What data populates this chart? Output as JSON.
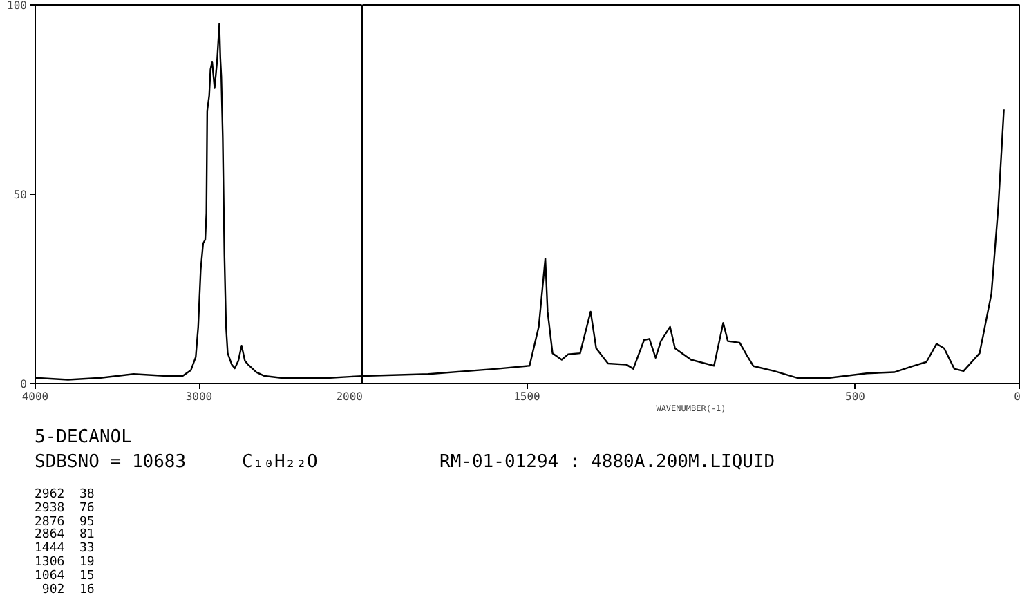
{
  "chart_data": [
    {
      "type": "line",
      "title": "5-DECANOL",
      "annotations": [
        "SDBSNO = 10683",
        "C₁₀H₂₂O",
        "RM-01-01294 : 4880A.200M.LIQUID",
        "2962  38",
        "2938  76",
        "2876  95",
        "2864  81",
        "1444  33",
        "1306  19",
        "1064  15",
        " 902  16"
      ],
      "xlim": [
        4000,
        2000
      ],
      "ylim": [
        0,
        100
      ],
      "xticks": [
        4000,
        3000,
        2000
      ],
      "yticks": [
        0,
        50,
        100
      ],
      "grid": false,
      "line_style": "solid",
      "series": [
        {
          "color": "#000000",
          "x": [
            4000,
            3800,
            3600,
            3400,
            3200,
            3100,
            3050,
            3020,
            3005,
            2990,
            2975,
            2962,
            2955,
            2950,
            2938,
            2930,
            2920,
            2905,
            2890,
            2876,
            2870,
            2864,
            2855,
            2845,
            2835,
            2825,
            2800,
            2782,
            2760,
            2740,
            2720,
            2700,
            2650,
            2600,
            2500,
            2400,
            2200,
            2000
          ],
          "values": [
            1.5,
            1,
            1.5,
            2.5,
            2,
            2,
            3.5,
            7,
            15,
            30,
            37,
            38,
            45,
            72,
            76,
            83,
            85,
            78,
            85,
            95,
            86,
            81,
            65,
            34,
            15,
            8,
            5,
            4,
            6,
            10,
            6,
            5,
            3,
            2,
            1.5,
            1.5,
            1.5,
            2
          ]
        }
      ]
    },
    {
      "type": "line",
      "xlabel": "WAVENUMBER(-1)",
      "xlim": [
        2000,
        0
      ],
      "ylim": [
        0,
        100
      ],
      "xticks": [
        1500,
        500,
        0
      ],
      "yticks": [
        0,
        50,
        100
      ],
      "tick_labels": "x",
      "grid": false,
      "line_style": "solid",
      "series": [
        {
          "color": "#000000",
          "x": [
            2000,
            1800,
            1591,
            1492,
            1464,
            1444,
            1437,
            1422,
            1394,
            1375,
            1338,
            1306,
            1289,
            1253,
            1197,
            1176,
            1143,
            1127,
            1108,
            1092,
            1064,
            1049,
            1000,
            930,
            902,
            888,
            852,
            831,
            810,
            747,
            676,
            578,
            465,
            381,
            325,
            283,
            252,
            229,
            198,
            170,
            121,
            85,
            64,
            47
          ],
          "values": [
            2,
            2.5,
            3.9,
            4.7,
            15,
            33,
            19,
            8,
            6.3,
            7.7,
            8,
            19,
            9.3,
            5.3,
            5,
            3.9,
            11.5,
            11.8,
            6.8,
            11.2,
            15,
            9.3,
            6.3,
            4.7,
            16,
            11.2,
            10.8,
            7.6,
            4.6,
            3.3,
            1.5,
            1.5,
            2.7,
            3,
            4.6,
            5.7,
            10.5,
            9.3,
            3.9,
            3.3,
            8,
            23.7,
            46.7,
            72.4
          ]
        }
      ]
    }
  ]
}
